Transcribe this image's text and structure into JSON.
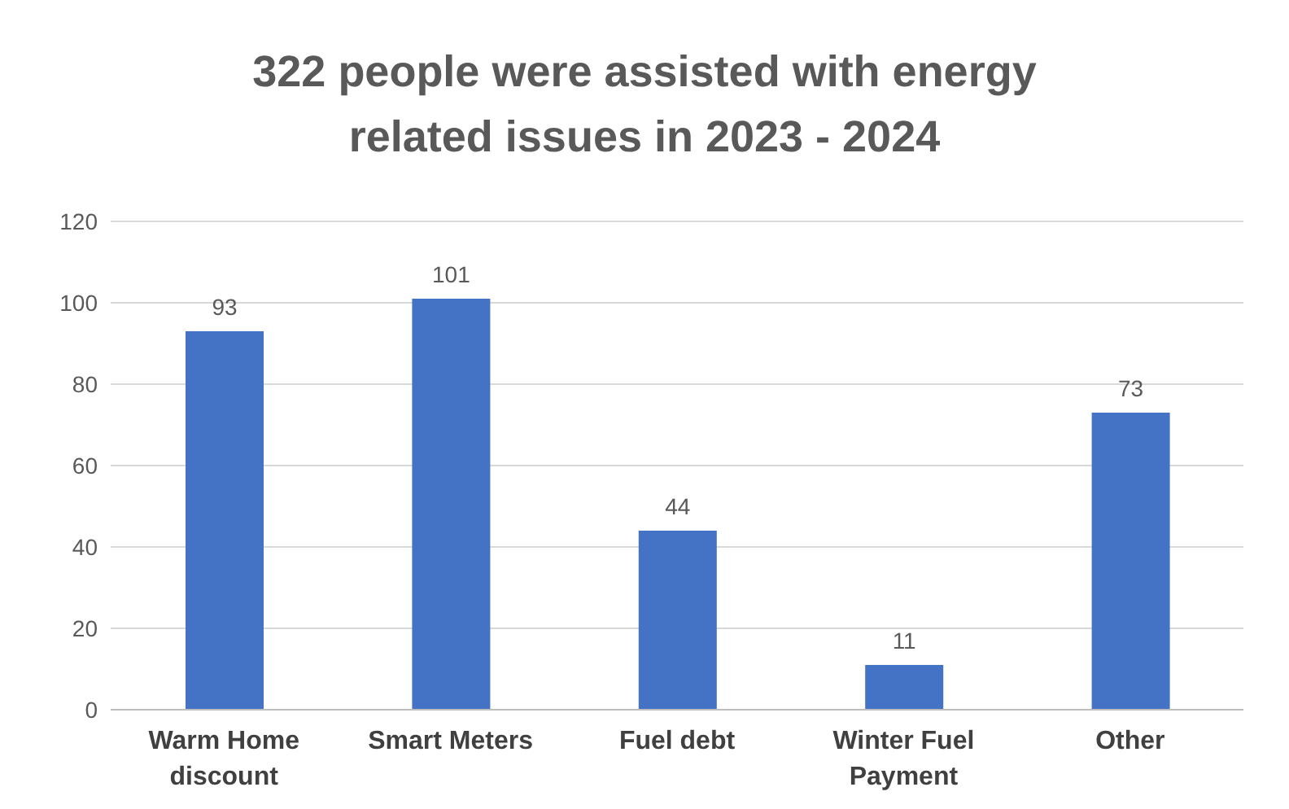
{
  "chart_data": {
    "type": "bar",
    "title": "322 people were assisted with energy related issues in 2023 - 2024",
    "categories": [
      "Warm Home discount",
      "Smart Meters",
      "Fuel debt",
      "Winter Fuel Payment",
      "Other"
    ],
    "values": [
      93,
      101,
      44,
      11,
      73
    ],
    "color": "#4472c4",
    "ylim": [
      0,
      120
    ],
    "yticks": [
      0,
      20,
      40,
      60,
      80,
      100,
      120
    ],
    "grid": "y",
    "data_labels": true
  }
}
